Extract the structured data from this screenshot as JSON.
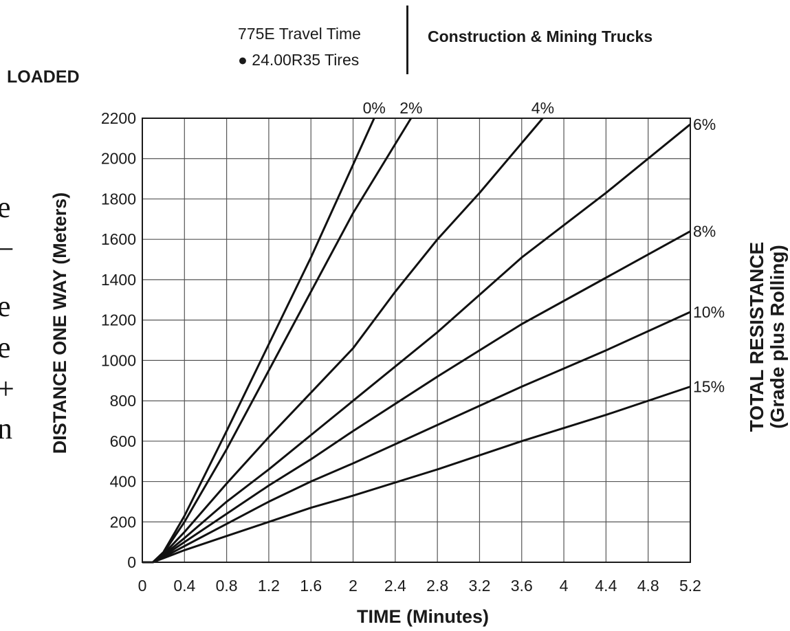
{
  "header": {
    "subtitle_line1": "775E Travel Time",
    "subtitle_line2": "● 24.00R35 Tires",
    "title": "Construction & Mining Trucks"
  },
  "condition_label": "LOADED",
  "cutoff_text": [
    "e",
    "–",
    "e",
    "e",
    "+",
    "n"
  ],
  "chart_data": {
    "type": "line",
    "xlabel": "TIME (Minutes)",
    "ylabel": "DISTANCE ONE WAY (Meters)",
    "right_label_line1": "TOTAL RESISTANCE",
    "right_label_line2": "(Grade plus Rolling)",
    "xlim": [
      0,
      5.2
    ],
    "ylim": [
      0,
      2200
    ],
    "x_ticks": [
      "0",
      "0.4",
      "0.8",
      "1.2",
      "1.6",
      "2",
      "2.4",
      "2.8",
      "3.2",
      "3.6",
      "4",
      "4.4",
      "4.8",
      "5.2"
    ],
    "y_ticks": [
      "0",
      "200",
      "400",
      "600",
      "800",
      "1000",
      "1200",
      "1400",
      "1600",
      "1800",
      "2000",
      "2200"
    ],
    "grid": true,
    "series": [
      {
        "name": "0%",
        "label_pos": "top",
        "points": [
          [
            0,
            0
          ],
          [
            0.1,
            0
          ],
          [
            0.2,
            50
          ],
          [
            0.4,
            230
          ],
          [
            0.8,
            650
          ],
          [
            1.2,
            1080
          ],
          [
            1.6,
            1510
          ],
          [
            2.2,
            2200
          ]
        ]
      },
      {
        "name": "2%",
        "label_pos": "top",
        "points": [
          [
            0,
            0
          ],
          [
            0.1,
            0
          ],
          [
            0.2,
            45
          ],
          [
            0.4,
            200
          ],
          [
            0.8,
            560
          ],
          [
            1.2,
            950
          ],
          [
            1.6,
            1340
          ],
          [
            2.0,
            1730
          ],
          [
            2.55,
            2200
          ]
        ]
      },
      {
        "name": "4%",
        "label_pos": "top",
        "points": [
          [
            0,
            0
          ],
          [
            0.1,
            0
          ],
          [
            0.2,
            40
          ],
          [
            0.4,
            150
          ],
          [
            0.8,
            390
          ],
          [
            1.2,
            620
          ],
          [
            1.6,
            840
          ],
          [
            2.0,
            1060
          ],
          [
            2.4,
            1340
          ],
          [
            2.8,
            1600
          ],
          [
            3.2,
            1830
          ],
          [
            3.8,
            2200
          ]
        ]
      },
      {
        "name": "6%",
        "label_pos": "right",
        "points": [
          [
            0,
            0
          ],
          [
            0.1,
            0
          ],
          [
            0.2,
            35
          ],
          [
            0.4,
            120
          ],
          [
            0.8,
            300
          ],
          [
            1.2,
            460
          ],
          [
            1.6,
            630
          ],
          [
            2.0,
            800
          ],
          [
            2.8,
            1140
          ],
          [
            3.6,
            1510
          ],
          [
            4.4,
            1830
          ],
          [
            5.2,
            2170
          ]
        ]
      },
      {
        "name": "8%",
        "label_pos": "right",
        "points": [
          [
            0,
            0
          ],
          [
            0.1,
            0
          ],
          [
            0.2,
            30
          ],
          [
            0.4,
            100
          ],
          [
            0.8,
            240
          ],
          [
            1.2,
            380
          ],
          [
            1.6,
            510
          ],
          [
            2.0,
            650
          ],
          [
            2.8,
            920
          ],
          [
            3.6,
            1180
          ],
          [
            4.4,
            1410
          ],
          [
            5.2,
            1640
          ]
        ]
      },
      {
        "name": "10%",
        "label_pos": "right",
        "points": [
          [
            0,
            0
          ],
          [
            0.1,
            0
          ],
          [
            0.2,
            25
          ],
          [
            0.4,
            80
          ],
          [
            0.8,
            190
          ],
          [
            1.2,
            300
          ],
          [
            1.6,
            400
          ],
          [
            2.0,
            490
          ],
          [
            2.8,
            680
          ],
          [
            3.6,
            870
          ],
          [
            4.4,
            1050
          ],
          [
            5.2,
            1240
          ]
        ]
      },
      {
        "name": "15%",
        "label_pos": "right",
        "points": [
          [
            0,
            0
          ],
          [
            0.1,
            0
          ],
          [
            0.2,
            20
          ],
          [
            0.4,
            60
          ],
          [
            0.8,
            130
          ],
          [
            1.2,
            200
          ],
          [
            1.6,
            270
          ],
          [
            2.0,
            330
          ],
          [
            2.8,
            460
          ],
          [
            3.6,
            600
          ],
          [
            4.4,
            730
          ],
          [
            5.2,
            870
          ]
        ]
      }
    ]
  }
}
